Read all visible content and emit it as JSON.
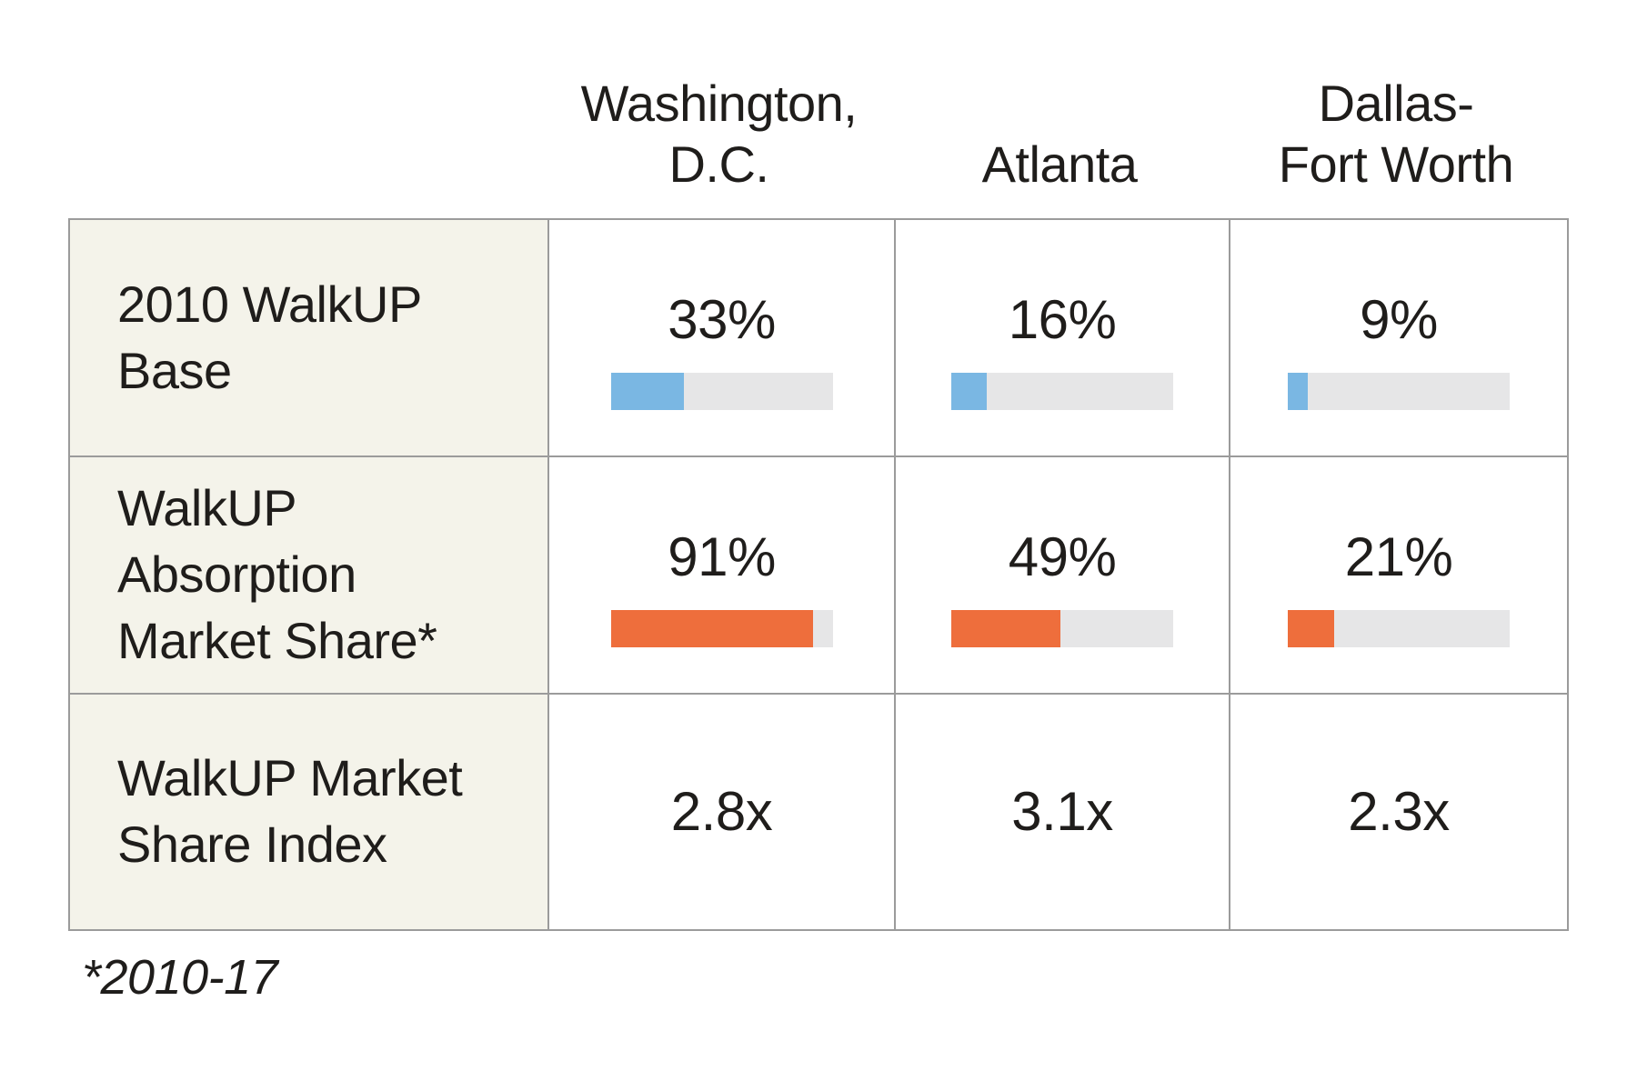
{
  "colors": {
    "bar_blue": "#7ab7e3",
    "bar_orange": "#ee6e3c",
    "bar_track": "#e6e6e7",
    "label_cell_bg": "#f4f3ea",
    "grid_border": "#9b9b9b",
    "text": "#1f1d1b"
  },
  "header": {
    "columns": [
      {
        "label": "Washington, D.C.",
        "lines": [
          "Washington,",
          "D.C."
        ]
      },
      {
        "label": "Atlanta",
        "lines": [
          "Atlanta"
        ]
      },
      {
        "label": "Dallas-Fort Worth",
        "lines": [
          "Dallas-",
          "Fort Worth"
        ]
      }
    ]
  },
  "rows": [
    {
      "label": "2010 WalkUP Base",
      "label_lines": [
        "2010 WalkUP",
        "Base"
      ],
      "type": "bar",
      "bar_color": "#7ab7e3",
      "values": [
        {
          "display": "33%",
          "percent": 33
        },
        {
          "display": "16%",
          "percent": 16
        },
        {
          "display": "9%",
          "percent": 9
        }
      ]
    },
    {
      "label": "WalkUP Absorption Market Share*",
      "label_lines": [
        "WalkUP",
        "Absorption",
        "Market Share*"
      ],
      "type": "bar",
      "bar_color": "#ee6e3c",
      "values": [
        {
          "display": "91%",
          "percent": 91
        },
        {
          "display": "49%",
          "percent": 49
        },
        {
          "display": "21%",
          "percent": 21
        }
      ]
    },
    {
      "label": "WalkUP Market Share Index",
      "label_lines": [
        "WalkUP Market",
        "Share Index"
      ],
      "type": "text",
      "values": [
        {
          "display": "2.8x"
        },
        {
          "display": "3.1x"
        },
        {
          "display": "2.3x"
        }
      ]
    }
  ],
  "footnote": "*2010-17",
  "chart_data": {
    "type": "table",
    "columns": [
      "Washington, D.C.",
      "Atlanta",
      "Dallas-Fort Worth"
    ],
    "rows": [
      {
        "label": "2010 WalkUP Base",
        "kind": "bar",
        "unit": "%",
        "values": [
          33,
          16,
          9
        ],
        "bar_color": "#7ab7e3"
      },
      {
        "label": "WalkUP Absorption Market Share*",
        "kind": "bar",
        "unit": "%",
        "values": [
          91,
          49,
          21
        ],
        "bar_color": "#ee6e3c"
      },
      {
        "label": "WalkUP Market Share Index",
        "kind": "text",
        "values": [
          "2.8x",
          "3.1x",
          "2.3x"
        ]
      }
    ],
    "bar_scale_max": 100,
    "footnote": "*2010-17"
  }
}
